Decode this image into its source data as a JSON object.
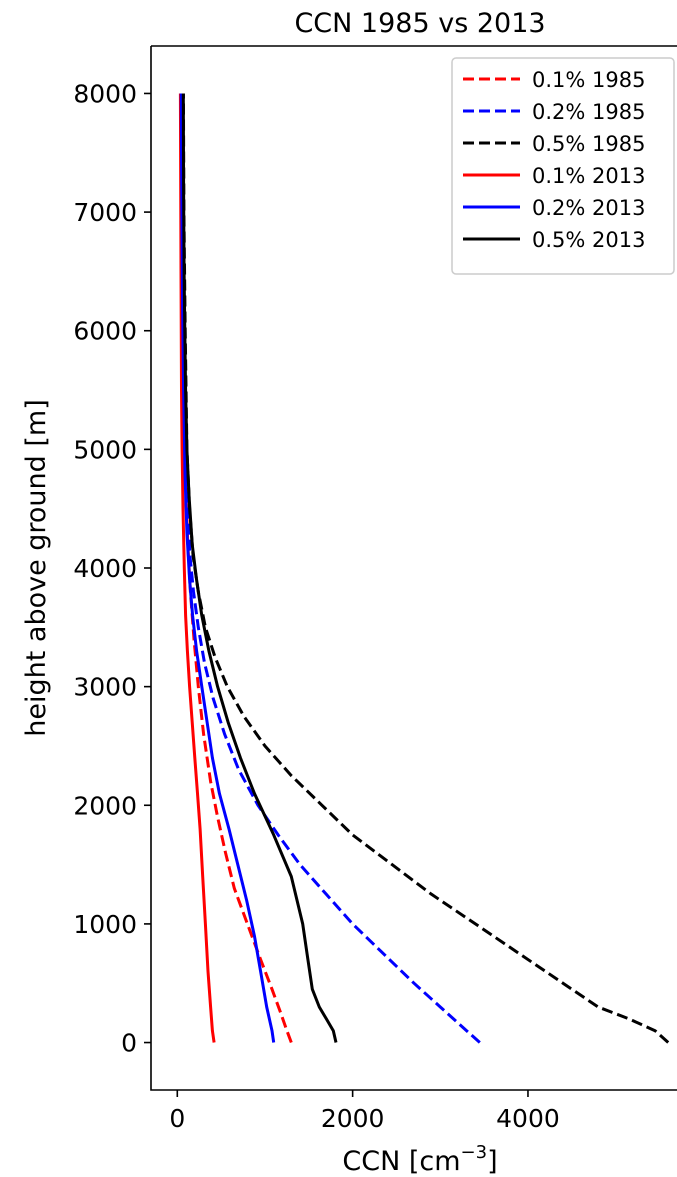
{
  "chart_data": {
    "type": "line",
    "title": "CCN 1985 vs 2013",
    "xlabel": "CCN [cm",
    "xlabel_exp": "−3",
    "xlabel_end": "]",
    "ylabel": "height above ground [m]",
    "xlim": [
      -300,
      5700
    ],
    "ylim": [
      -400,
      8400
    ],
    "xticks": [
      0,
      2000,
      4000
    ],
    "xtick_labels": [
      "0",
      "2000",
      "4000"
    ],
    "yticks": [
      0,
      1000,
      2000,
      3000,
      4000,
      5000,
      6000,
      7000,
      8000
    ],
    "ytick_labels": [
      "0",
      "1000",
      "2000",
      "3000",
      "4000",
      "5000",
      "6000",
      "7000",
      "8000"
    ],
    "grid": false,
    "legend": "top-right",
    "series": [
      {
        "name": "0.1% 1985",
        "color": "#ff0000",
        "dash": true,
        "x": [
          1300,
          1250,
          1180,
          1080,
          950,
          800,
          650,
          550,
          460,
          380,
          300,
          240,
          190,
          150,
          120,
          100,
          85,
          65,
          52,
          45,
          40
        ],
        "y": [
          0,
          100,
          250,
          450,
          700,
          1000,
          1300,
          1600,
          1900,
          2200,
          2600,
          3000,
          3400,
          3800,
          4200,
          4600,
          5000,
          6000,
          7000,
          7500,
          8000
        ]
      },
      {
        "name": "0.2% 1985",
        "color": "#0000ff",
        "dash": true,
        "x": [
          3450,
          3300,
          3000,
          2700,
          2350,
          2000,
          1700,
          1400,
          1150,
          920,
          700,
          540,
          410,
          310,
          240,
          185,
          145,
          115,
          90,
          75,
          60,
          55
        ],
        "y": [
          0,
          100,
          300,
          500,
          750,
          1000,
          1250,
          1500,
          1750,
          2000,
          2300,
          2600,
          2900,
          3200,
          3500,
          3800,
          4100,
          4500,
          5000,
          6000,
          7000,
          8000
        ]
      },
      {
        "name": "0.5% 1985",
        "color": "#000000",
        "dash": true,
        "x": [
          5600,
          5450,
          5150,
          4800,
          4400,
          3900,
          3400,
          2900,
          2450,
          2000,
          1650,
          1300,
          1000,
          760,
          570,
          430,
          320,
          240,
          180,
          140,
          110,
          90,
          75,
          70
        ],
        "y": [
          0,
          100,
          200,
          300,
          500,
          750,
          1000,
          1250,
          1500,
          1750,
          2000,
          2250,
          2500,
          2750,
          3000,
          3250,
          3500,
          3800,
          4100,
          4500,
          5000,
          6000,
          7000,
          8000
        ]
      },
      {
        "name": "0.1% 2013",
        "color": "#ff0000",
        "dash": false,
        "x": [
          420,
          400,
          380,
          350,
          320,
          290,
          260,
          230,
          200,
          170,
          140,
          115,
          95,
          80,
          65,
          55,
          48,
          42,
          38,
          35
        ],
        "y": [
          0,
          100,
          300,
          600,
          1000,
          1400,
          1800,
          2100,
          2400,
          2700,
          3000,
          3300,
          3600,
          4000,
          4500,
          5000,
          5500,
          6500,
          7500,
          8000
        ]
      },
      {
        "name": "0.2% 2013",
        "color": "#0000ff",
        "dash": false,
        "x": [
          1100,
          1080,
          1020,
          950,
          880,
          790,
          690,
          590,
          480,
          400,
          340,
          280,
          220,
          175,
          140,
          110,
          88,
          72,
          60,
          52,
          48,
          45
        ],
        "y": [
          0,
          100,
          300,
          600,
          900,
          1200,
          1500,
          1800,
          2100,
          2400,
          2700,
          3000,
          3300,
          3600,
          3900,
          4300,
          4800,
          5500,
          6200,
          7000,
          7500,
          8000
        ]
      },
      {
        "name": "0.5% 2013",
        "color": "#000000",
        "dash": false,
        "x": [
          1810,
          1780,
          1700,
          1620,
          1540,
          1490,
          1430,
          1300,
          1100,
          880,
          720,
          580,
          460,
          360,
          280,
          220,
          170,
          135,
          110,
          95,
          85,
          78,
          72,
          68
        ],
        "y": [
          0,
          100,
          200,
          300,
          450,
          700,
          1000,
          1400,
          1750,
          2100,
          2400,
          2700,
          3000,
          3300,
          3600,
          3900,
          4200,
          4600,
          5000,
          5500,
          6000,
          6500,
          7200,
          8000
        ]
      }
    ]
  }
}
